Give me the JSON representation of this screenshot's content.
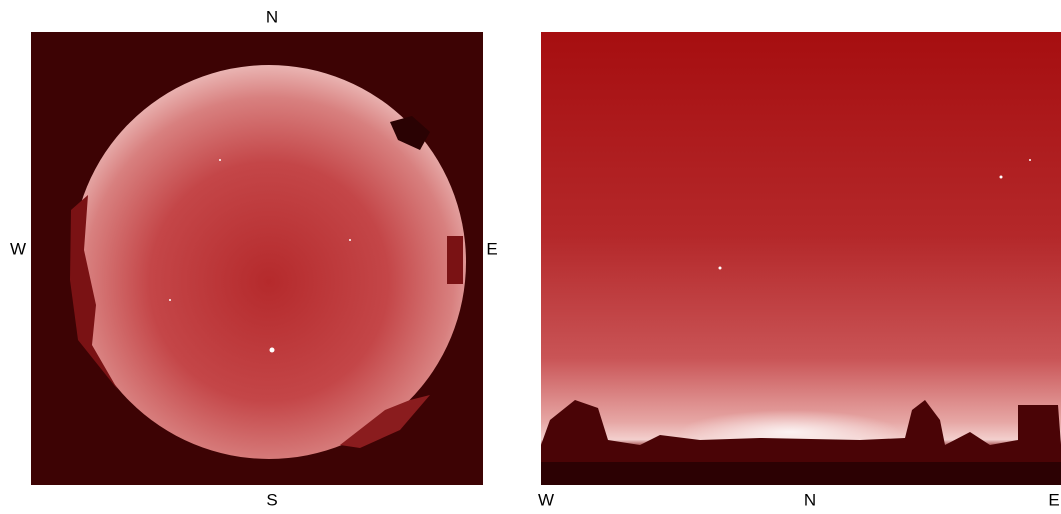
{
  "all_sky": {
    "labels": {
      "top": "N",
      "bottom": "S",
      "left": "W",
      "right": "E"
    }
  },
  "panorama": {
    "labels": [
      "W",
      "N",
      "E"
    ]
  }
}
